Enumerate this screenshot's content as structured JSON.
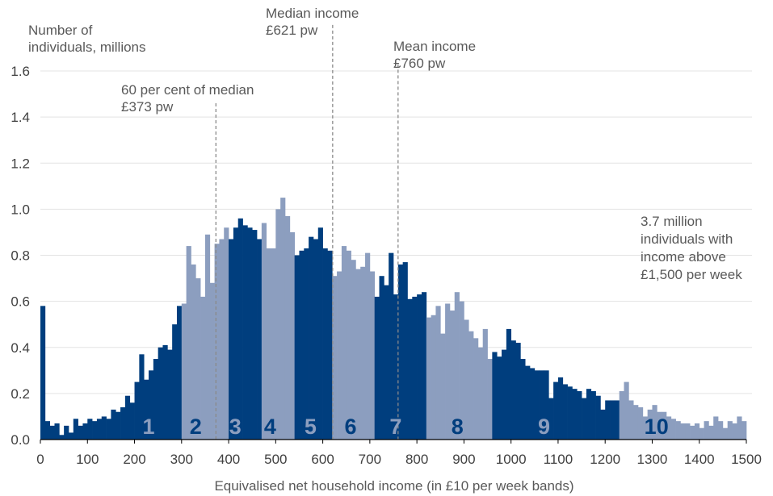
{
  "chart_data": {
    "type": "bar",
    "ylabel_lines": [
      "Number of",
      "individuals, millions"
    ],
    "xlabel": "Equivalised net household income (in £10 per week bands)",
    "xlim": [
      0,
      1500
    ],
    "ylim": [
      0,
      1.6
    ],
    "yticks": [
      0.0,
      0.2,
      0.4,
      0.6,
      0.8,
      1.0,
      1.2,
      1.4,
      1.6
    ],
    "ytick_labels": [
      "0.0",
      "0.2",
      "0.4",
      "0.6",
      "0.8",
      "1.0",
      "1.2",
      "1.4",
      "1.6"
    ],
    "xticks": [
      0,
      100,
      200,
      300,
      400,
      500,
      600,
      700,
      800,
      900,
      1000,
      1100,
      1200,
      1300,
      1400,
      1500
    ],
    "xtick_labels": [
      "0",
      "100",
      "200",
      "300",
      "400",
      "500",
      "600",
      "700",
      "800",
      "900",
      "1000",
      "1100",
      "1200",
      "1300",
      "1400",
      "1500"
    ],
    "grid": "horizontal",
    "bin_width": 10,
    "bin_start": 0,
    "values": [
      0.58,
      0.08,
      0.06,
      0.07,
      0.02,
      0.06,
      0.03,
      0.09,
      0.06,
      0.07,
      0.09,
      0.08,
      0.09,
      0.1,
      0.09,
      0.13,
      0.12,
      0.14,
      0.19,
      0.16,
      0.25,
      0.37,
      0.26,
      0.3,
      0.35,
      0.4,
      0.41,
      0.39,
      0.5,
      0.58,
      0.59,
      0.84,
      0.76,
      0.7,
      0.62,
      0.89,
      0.68,
      0.85,
      0.87,
      0.92,
      0.87,
      0.92,
      0.96,
      0.93,
      0.92,
      0.91,
      0.87,
      0.94,
      0.83,
      0.83,
      1.0,
      1.05,
      0.97,
      0.9,
      0.8,
      0.82,
      0.83,
      0.88,
      0.87,
      0.92,
      0.83,
      0.82,
      0.71,
      0.73,
      0.84,
      0.82,
      0.78,
      0.74,
      0.75,
      0.81,
      0.73,
      0.62,
      0.71,
      0.67,
      0.81,
      0.63,
      0.76,
      0.77,
      0.61,
      0.62,
      0.63,
      0.64,
      0.53,
      0.54,
      0.58,
      0.46,
      0.59,
      0.56,
      0.64,
      0.6,
      0.52,
      0.47,
      0.44,
      0.4,
      0.48,
      0.35,
      0.38,
      0.36,
      0.39,
      0.48,
      0.43,
      0.42,
      0.35,
      0.32,
      0.31,
      0.3,
      0.3,
      0.3,
      0.18,
      0.25,
      0.27,
      0.24,
      0.23,
      0.22,
      0.21,
      0.18,
      0.22,
      0.21,
      0.19,
      0.13,
      0.17,
      0.17,
      0.17,
      0.21,
      0.25,
      0.17,
      0.15,
      0.14,
      0.1,
      0.13,
      0.15,
      0.12,
      0.12,
      0.1,
      0.09,
      0.08,
      0.07,
      0.07,
      0.06,
      0.07,
      0.05,
      0.08,
      0.06,
      0.1,
      0.08,
      0.05,
      0.08,
      0.07,
      0.1,
      0.08
    ],
    "colors": {
      "dark": "#003e7e",
      "light": "#8c9ebf"
    },
    "deciles": [
      {
        "label": "1",
        "from": 0,
        "to": 300,
        "shade": "dark",
        "x_position": 230,
        "label_color": "#8c9ebf"
      },
      {
        "label": "2",
        "from": 300,
        "to": 400,
        "shade": "light",
        "x_position": 330,
        "label_color": "#003e7e"
      },
      {
        "label": "3",
        "from": 400,
        "to": 470,
        "shade": "dark",
        "x_position": 414,
        "label_color": "#8c9ebf"
      },
      {
        "label": "4",
        "from": 470,
        "to": 540,
        "shade": "light",
        "x_position": 488,
        "label_color": "#003e7e"
      },
      {
        "label": "5",
        "from": 540,
        "to": 620,
        "shade": "dark",
        "x_position": 574,
        "label_color": "#8c9ebf"
      },
      {
        "label": "6",
        "from": 620,
        "to": 710,
        "shade": "light",
        "x_position": 659,
        "label_color": "#003e7e"
      },
      {
        "label": "7",
        "from": 710,
        "to": 820,
        "shade": "dark",
        "x_position": 755,
        "label_color": "#8c9ebf"
      },
      {
        "label": "8",
        "from": 820,
        "to": 960,
        "shade": "light",
        "x_position": 886,
        "label_color": "#003e7e"
      },
      {
        "label": "9",
        "from": 960,
        "to": 1230,
        "shade": "dark",
        "x_position": 1070,
        "label_color": "#8c9ebf"
      },
      {
        "label": "10",
        "from": 1230,
        "to": 1500,
        "shade": "light",
        "x_position": 1309,
        "label_color": "#003e7e"
      }
    ],
    "reference_lines": [
      {
        "x": 373,
        "y_top": 1.46,
        "label_lines": [
          "60 per cent of median",
          "£373 pw"
        ]
      },
      {
        "x": 621,
        "y_top": 1.8,
        "label_lines": [
          "Median income",
          "£621 pw"
        ]
      },
      {
        "x": 760,
        "y_top": 1.63,
        "label_lines": [
          "Mean income",
          "£760 pw"
        ]
      }
    ],
    "annotation_lines": [
      "3.7 million",
      "individuals with",
      "income above",
      "£1,500 per week"
    ]
  }
}
